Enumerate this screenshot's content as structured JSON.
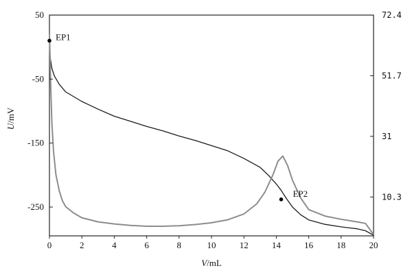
{
  "chart_data": {
    "type": "line",
    "title": "",
    "xlabel": {
      "var": "V",
      "unit": "/mL"
    },
    "ylabel_left": {
      "var": "U",
      "unit": "/mV"
    },
    "ylabel_right": "",
    "xlim": [
      0,
      20
    ],
    "ylim_left": [
      -295,
      50
    ],
    "ylim_right": [
      -2.97,
      72.4
    ],
    "x_ticks": [
      "0",
      "2",
      "4",
      "6",
      "8",
      "10",
      "12",
      "14",
      "16",
      "18",
      "20"
    ],
    "y_left_ticks": [
      "50",
      "-50",
      "-150",
      "-250"
    ],
    "y_right_ticks": [
      "72.4",
      "51.7",
      "31",
      "10.3"
    ],
    "grid": false,
    "colors": {
      "potential": "#1a1a1a",
      "derivative": "#8c8c8c",
      "marker": "#000000"
    },
    "series": [
      {
        "axis": "left",
        "points": [
          [
            0,
            0
          ],
          [
            0.05,
            -17
          ],
          [
            0.15,
            -33
          ],
          [
            0.3,
            -45
          ],
          [
            0.6,
            -58
          ],
          [
            1,
            -70
          ],
          [
            2,
            -85
          ],
          [
            3,
            -97
          ],
          [
            4,
            -108
          ],
          [
            5,
            -116
          ],
          [
            6,
            -124
          ],
          [
            7,
            -131
          ],
          [
            8,
            -139
          ],
          [
            9,
            -146
          ],
          [
            10,
            -154
          ],
          [
            11,
            -162
          ],
          [
            12,
            -174
          ],
          [
            13,
            -188
          ],
          [
            13.5,
            -200
          ],
          [
            14,
            -214
          ],
          [
            14.3,
            -224
          ],
          [
            14.6,
            -236
          ],
          [
            15,
            -250
          ],
          [
            15.5,
            -262
          ],
          [
            16,
            -270
          ],
          [
            17,
            -277
          ],
          [
            18,
            -281
          ],
          [
            19,
            -284
          ],
          [
            19.5,
            -287
          ],
          [
            20,
            -294
          ]
        ]
      },
      {
        "axis": "right",
        "points": [
          [
            0,
            66
          ],
          [
            0.03,
            60
          ],
          [
            0.08,
            48
          ],
          [
            0.15,
            36
          ],
          [
            0.25,
            26
          ],
          [
            0.4,
            18
          ],
          [
            0.6,
            12.5
          ],
          [
            0.8,
            9
          ],
          [
            1,
            7
          ],
          [
            1.5,
            4.8
          ],
          [
            2,
            3.2
          ],
          [
            3,
            1.8
          ],
          [
            4,
            1.1
          ],
          [
            5,
            0.6
          ],
          [
            6,
            0.3
          ],
          [
            7,
            0.3
          ],
          [
            8,
            0.5
          ],
          [
            9,
            0.9
          ],
          [
            10,
            1.5
          ],
          [
            11,
            2.5
          ],
          [
            12,
            4.5
          ],
          [
            12.8,
            8
          ],
          [
            13.3,
            12
          ],
          [
            13.8,
            18
          ],
          [
            14.1,
            22.5
          ],
          [
            14.4,
            24.3
          ],
          [
            14.7,
            21
          ],
          [
            15,
            16
          ],
          [
            15.5,
            10
          ],
          [
            16,
            6
          ],
          [
            17,
            3.8
          ],
          [
            18,
            2.7
          ],
          [
            19,
            1.8
          ],
          [
            19.5,
            1.3
          ],
          [
            20,
            -2.5
          ]
        ]
      }
    ],
    "annotations": [
      {
        "text": "EP1",
        "x": 0,
        "y": 10
      },
      {
        "text": "EP2",
        "x": 14.3,
        "y": -238
      }
    ]
  }
}
